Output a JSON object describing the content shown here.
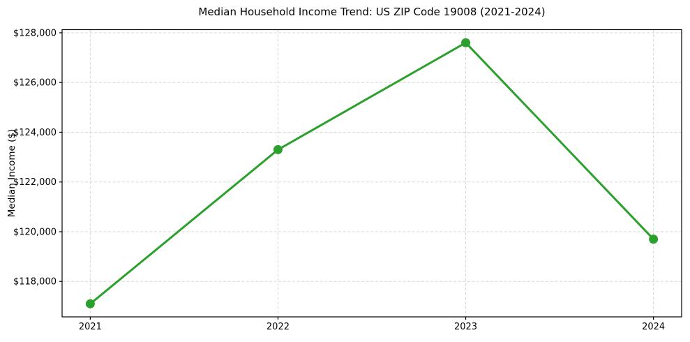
{
  "chart_data": {
    "type": "line",
    "title": "Median Household Income Trend: US ZIP Code 19008 (2021-2024)",
    "xlabel": "",
    "ylabel": "Median Income ($)",
    "x": [
      2021,
      2022,
      2023,
      2024
    ],
    "values": [
      117100,
      123300,
      127600,
      119700
    ],
    "xticks": [
      {
        "value": 2021,
        "label": "2021"
      },
      {
        "value": 2022,
        "label": "2022"
      },
      {
        "value": 2023,
        "label": "2023"
      },
      {
        "value": 2024,
        "label": "2024"
      }
    ],
    "yticks": [
      {
        "value": 118000,
        "label": "$118,000"
      },
      {
        "value": 120000,
        "label": "$120,000"
      },
      {
        "value": 122000,
        "label": "$122,000"
      },
      {
        "value": 124000,
        "label": "$124,000"
      },
      {
        "value": 126000,
        "label": "$126,000"
      },
      {
        "value": 128000,
        "label": "$128,000"
      }
    ],
    "xlim": [
      2020.85,
      2024.15
    ],
    "ylim": [
      116575,
      128125
    ],
    "grid": true,
    "grid_linestyle": "dashed",
    "legend": "none",
    "marker": "circle",
    "line_color": "#2ca02c",
    "grid_color": "#d7d7d7",
    "axis_color": "#000000",
    "background_color": "#ffffff"
  }
}
